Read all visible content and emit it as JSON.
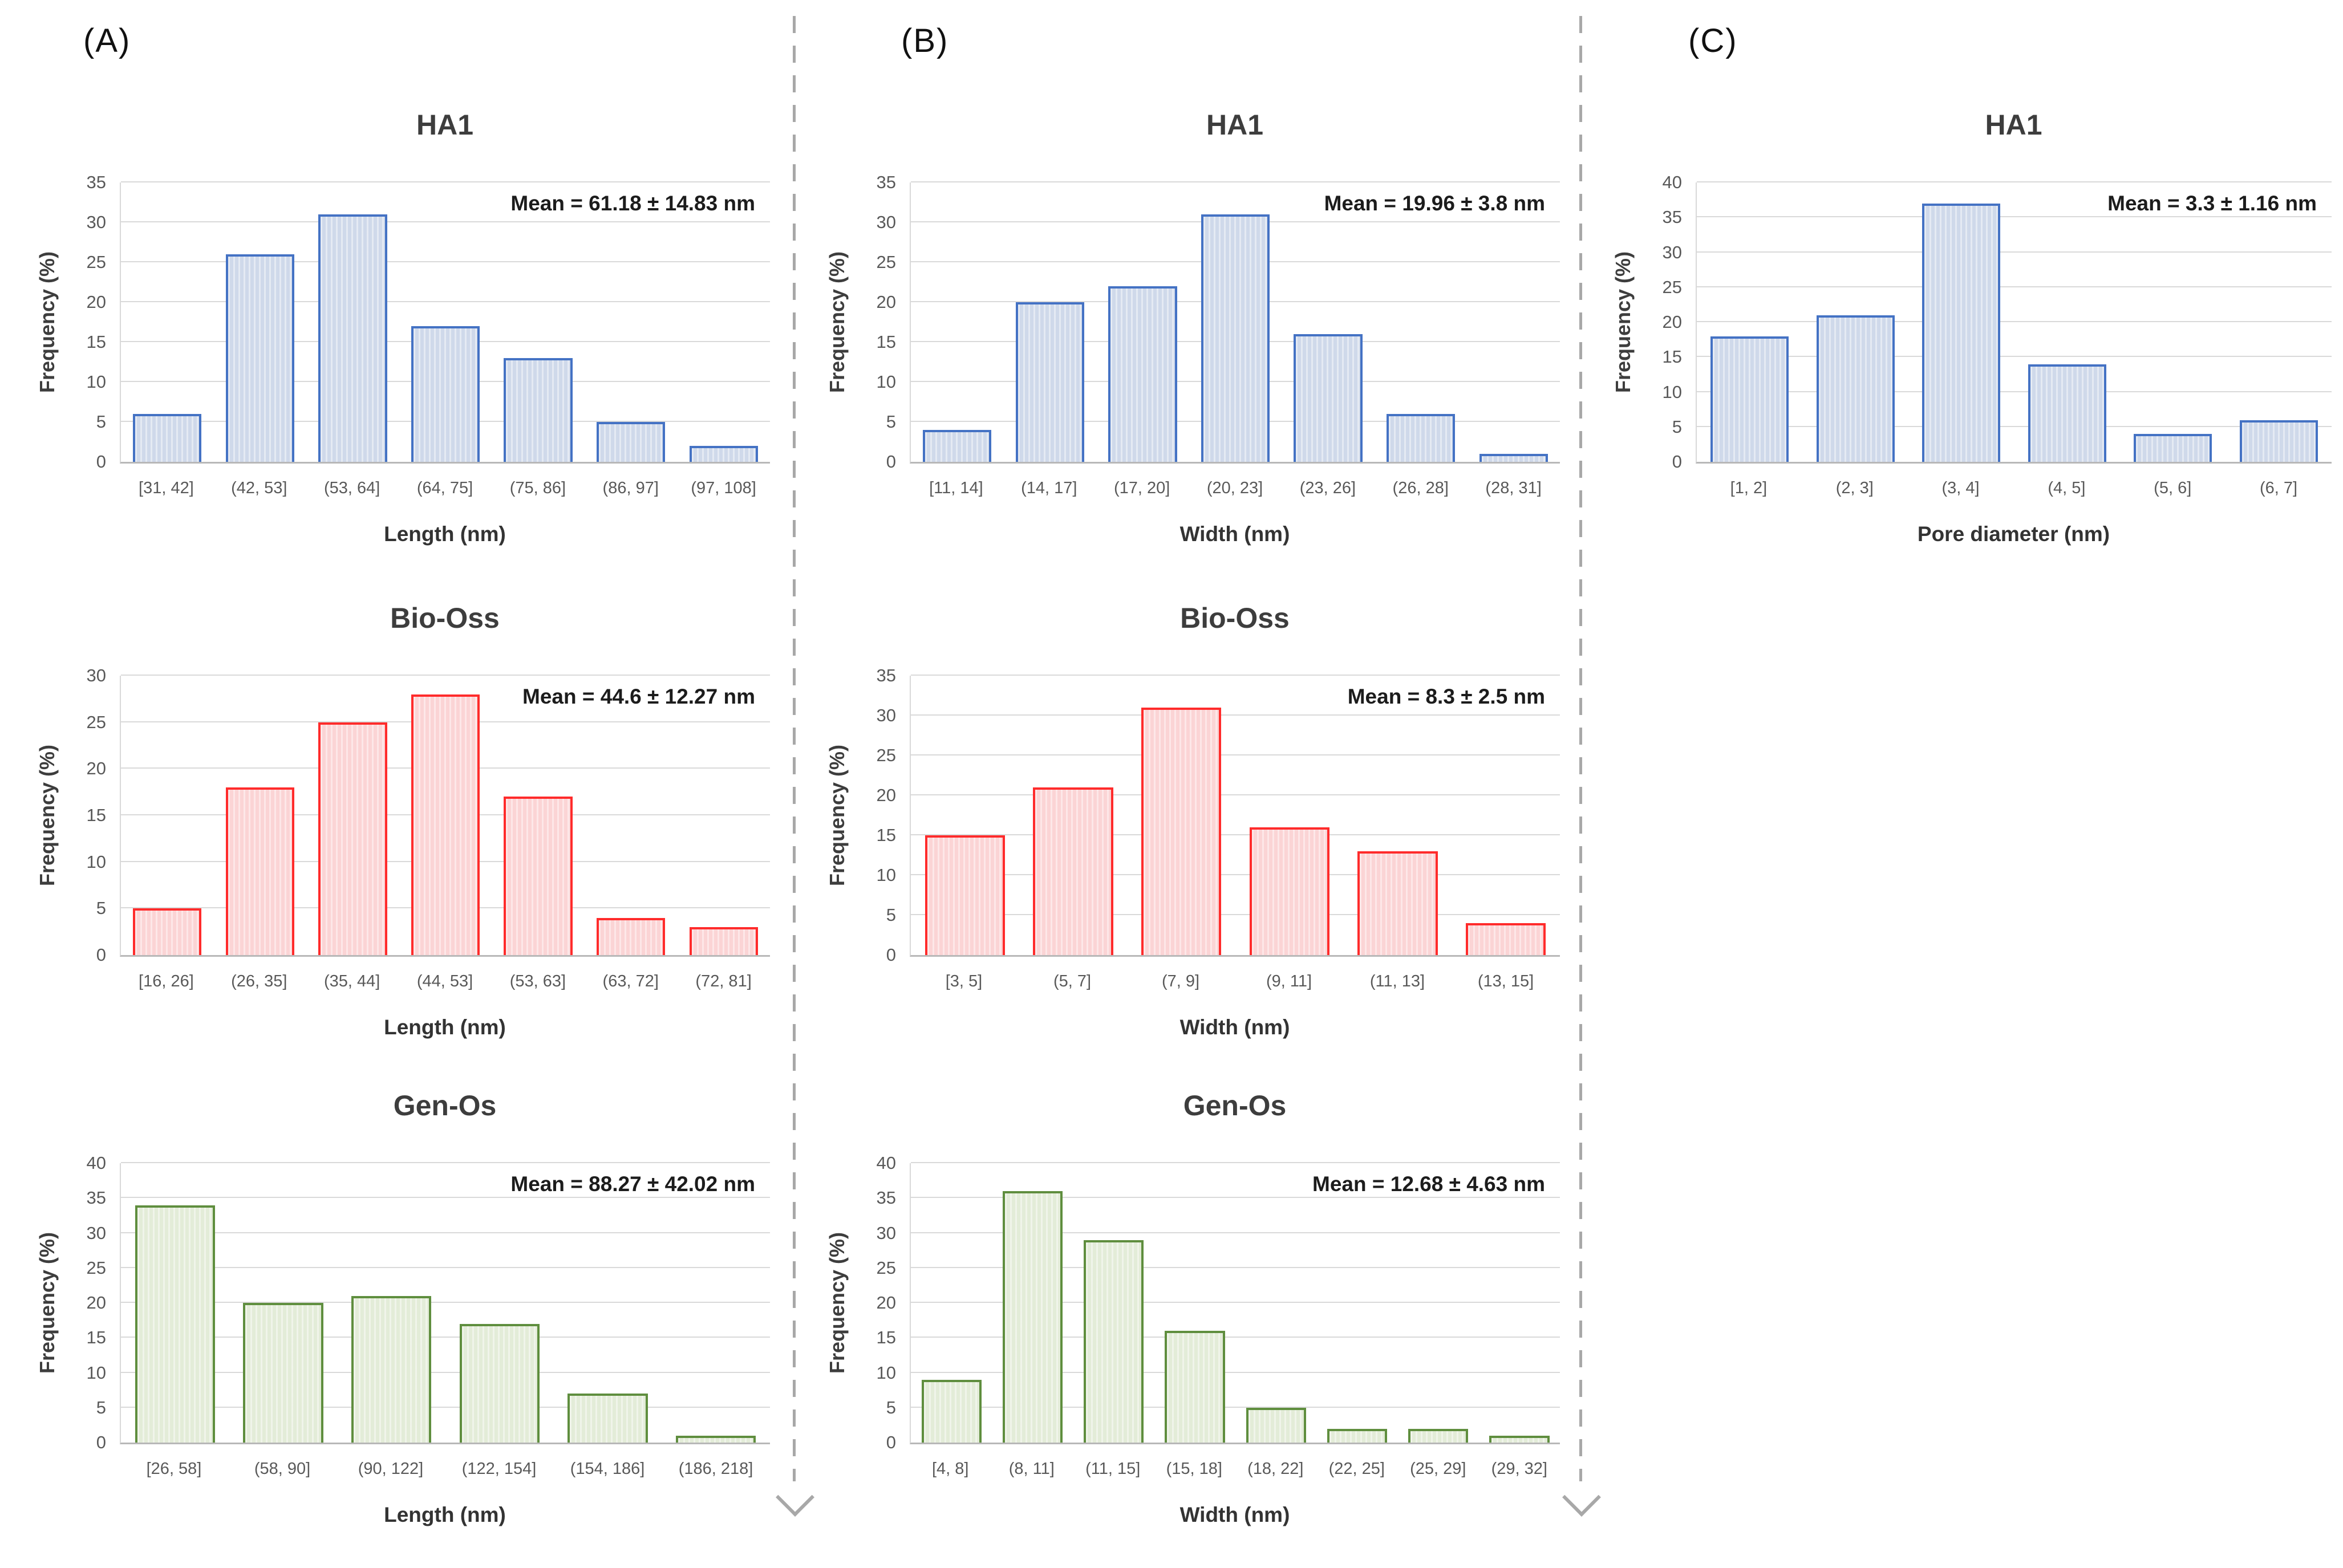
{
  "figure": {
    "panels": [
      {
        "label": "(A)"
      },
      {
        "label": "(B)"
      },
      {
        "label": "(C)"
      }
    ]
  },
  "chart_data": [
    {
      "id": "a-ha1-length",
      "panel": "A",
      "row": 1,
      "type": "bar",
      "title": "HA1",
      "annotation": "Mean = 61.18 ± 14.83 nm",
      "categories": [
        "[31, 42]",
        "(42, 53]",
        "(53, 64]",
        "(64, 75]",
        "(75, 86]",
        "(86, 97]",
        "(97, 108]"
      ],
      "values": [
        6,
        26,
        31,
        17,
        13,
        5,
        2
      ],
      "xlabel": "Length (nm)",
      "ylabel": "Frequency (%)",
      "ylim": [
        0,
        35
      ],
      "ytick_step": 5,
      "grid": true,
      "legend": "none",
      "bar_stroke": "#4472C4",
      "bar_fill": "#CFD9EA"
    },
    {
      "id": "a-bio-oss-length",
      "panel": "A",
      "row": 2,
      "type": "bar",
      "title": "Bio-Oss",
      "annotation": "Mean = 44.6 ± 12.27 nm",
      "categories": [
        "[16, 26]",
        "(26, 35]",
        "(35, 44]",
        "(44, 53]",
        "(53, 63]",
        "(63, 72]",
        "(72, 81]"
      ],
      "values": [
        5,
        18,
        25,
        28,
        17,
        4,
        3
      ],
      "xlabel": "Length (nm)",
      "ylabel": "Frequency (%)",
      "ylim": [
        0,
        30
      ],
      "ytick_step": 5,
      "grid": true,
      "legend": "none",
      "bar_stroke": "#FF2B2B",
      "bar_fill": "#FBD4D5"
    },
    {
      "id": "a-gen-os-length",
      "panel": "A",
      "row": 3,
      "type": "bar",
      "title": "Gen-Os",
      "annotation": "Mean = 88.27 ± 42.02 nm",
      "categories": [
        "[26, 58]",
        "(58, 90]",
        "(90, 122]",
        "(122, 154]",
        "(154, 186]",
        "(186, 218]"
      ],
      "values": [
        34,
        20,
        21,
        17,
        7,
        1
      ],
      "xlabel": "Length (nm)",
      "ylabel": "Frequency (%)",
      "ylim": [
        0,
        40
      ],
      "ytick_step": 5,
      "grid": true,
      "legend": "none",
      "bar_stroke": "#5F8E3E",
      "bar_fill": "#E3ECD8"
    },
    {
      "id": "b-ha1-width",
      "panel": "B",
      "row": 1,
      "type": "bar",
      "title": "HA1",
      "annotation": "Mean = 19.96 ± 3.8 nm",
      "categories": [
        "[11, 14]",
        "(14, 17]",
        "(17, 20]",
        "(20, 23]",
        "(23, 26]",
        "(26, 28]",
        "(28, 31]"
      ],
      "values": [
        4,
        20,
        22,
        31,
        16,
        6,
        1
      ],
      "xlabel": "Width (nm)",
      "ylabel": "Frequency (%)",
      "ylim": [
        0,
        35
      ],
      "ytick_step": 5,
      "grid": true,
      "legend": "none",
      "bar_stroke": "#4472C4",
      "bar_fill": "#CFD9EA"
    },
    {
      "id": "b-bio-oss-width",
      "panel": "B",
      "row": 2,
      "type": "bar",
      "title": "Bio-Oss",
      "annotation": "Mean = 8.3 ± 2.5 nm",
      "categories": [
        "[3, 5]",
        "(5, 7]",
        "(7, 9]",
        "(9, 11]",
        "(11, 13]",
        "(13, 15]"
      ],
      "values": [
        15,
        21,
        31,
        16,
        13,
        4
      ],
      "xlabel": "Width (nm)",
      "ylabel": "Frequency (%)",
      "ylim": [
        0,
        35
      ],
      "ytick_step": 5,
      "grid": true,
      "legend": "none",
      "bar_stroke": "#FF2B2B",
      "bar_fill": "#FBD4D5"
    },
    {
      "id": "b-gen-os-width",
      "panel": "B",
      "row": 3,
      "type": "bar",
      "title": "Gen-Os",
      "annotation": "Mean = 12.68 ± 4.63 nm",
      "categories": [
        "[4, 8]",
        "(8, 11]",
        "(11, 15]",
        "(15, 18]",
        "(18, 22]",
        "(22, 25]",
        "(25, 29]",
        "(29, 32]"
      ],
      "values": [
        9,
        36,
        29,
        16,
        5,
        2,
        2,
        1
      ],
      "xlabel": "Width (nm)",
      "ylabel": "Frequency (%)",
      "ylim": [
        0,
        40
      ],
      "ytick_step": 5,
      "grid": true,
      "legend": "none",
      "bar_stroke": "#5F8E3E",
      "bar_fill": "#E3ECD8"
    },
    {
      "id": "c-ha1-pore-diameter",
      "panel": "C",
      "row": 1,
      "type": "bar",
      "title": "HA1",
      "annotation": "Mean = 3.3 ± 1.16 nm",
      "categories": [
        "[1, 2]",
        "(2, 3]",
        "(3, 4]",
        "(4, 5]",
        "(5, 6]",
        "(6, 7]"
      ],
      "values": [
        18,
        21,
        37,
        14,
        4,
        6
      ],
      "xlabel": "Pore diameter (nm)",
      "ylabel": "Frequency (%)",
      "ylim": [
        0,
        40
      ],
      "ytick_step": 5,
      "grid": true,
      "legend": "none",
      "bar_stroke": "#4472C4",
      "bar_fill": "#CFD9EA"
    }
  ]
}
